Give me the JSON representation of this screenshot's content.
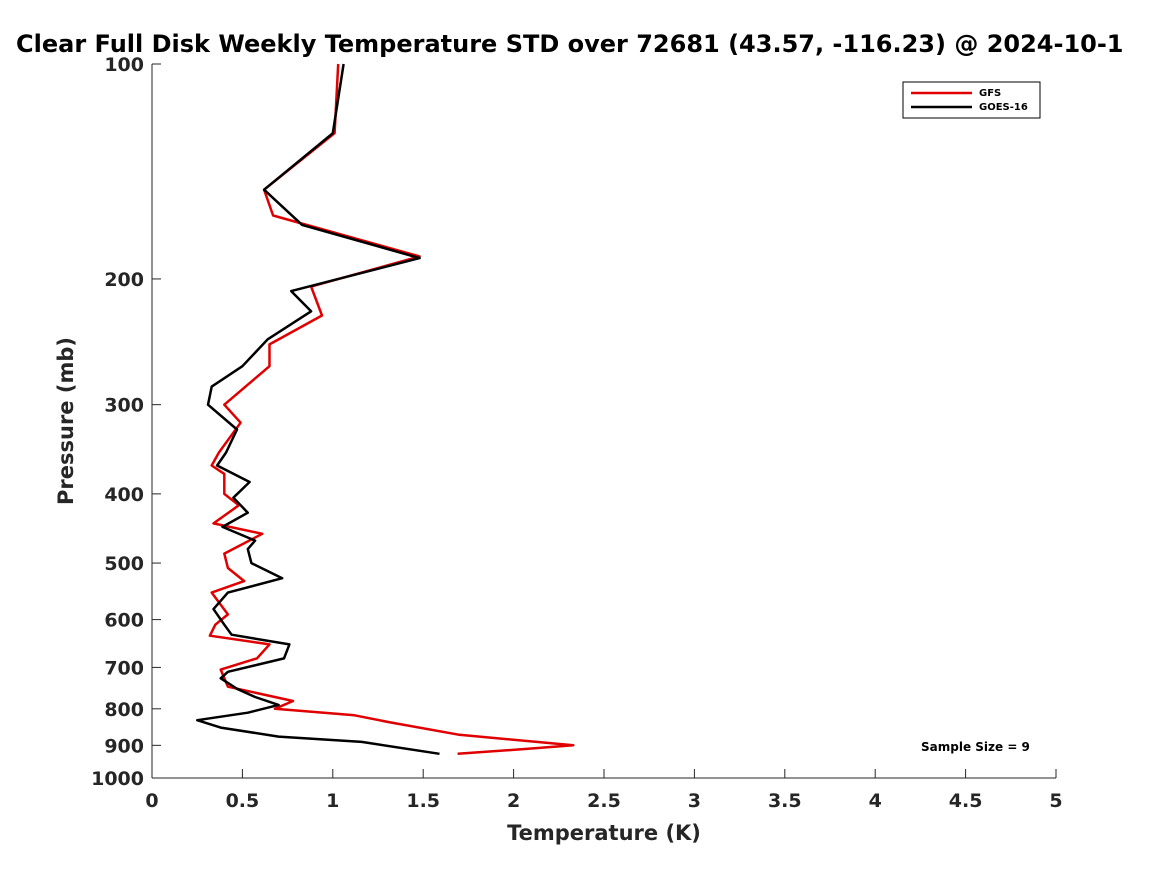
{
  "chart_data": {
    "type": "line",
    "title": "Clear Full Disk Weekly Temperature STD over 72681 (43.57, -116.23) @ 2024-10-1",
    "xlabel": "Temperature (K)",
    "ylabel": "Pressure (mb)",
    "xlim": [
      0,
      5
    ],
    "ylim": [
      100,
      1000
    ],
    "y_scale": "log",
    "y_reversed": true,
    "x_ticks": [
      "0",
      "0.5",
      "1",
      "1.5",
      "2",
      "2.5",
      "3",
      "3.5",
      "4",
      "4.5",
      "5"
    ],
    "y_ticks": [
      "100",
      "200",
      "300",
      "400",
      "500",
      "600",
      "700",
      "800",
      "900",
      "1000"
    ],
    "legend_position": "top-right",
    "annotation": "Sample Size = 9",
    "series": [
      {
        "name": "GFS",
        "color": "#e00000",
        "points": [
          [
            1.03,
            100
          ],
          [
            1.01,
            125
          ],
          [
            0.62,
            150
          ],
          [
            0.67,
            163
          ],
          [
            1.48,
            186
          ],
          [
            0.88,
            205
          ],
          [
            0.94,
            225
          ],
          [
            0.65,
            247
          ],
          [
            0.65,
            265
          ],
          [
            0.4,
            300
          ],
          [
            0.49,
            318
          ],
          [
            0.37,
            350
          ],
          [
            0.33,
            365
          ],
          [
            0.4,
            375
          ],
          [
            0.4,
            400
          ],
          [
            0.48,
            415
          ],
          [
            0.34,
            440
          ],
          [
            0.61,
            455
          ],
          [
            0.4,
            485
          ],
          [
            0.42,
            508
          ],
          [
            0.51,
            530
          ],
          [
            0.33,
            550
          ],
          [
            0.42,
            590
          ],
          [
            0.35,
            610
          ],
          [
            0.32,
            632
          ],
          [
            0.65,
            650
          ],
          [
            0.58,
            680
          ],
          [
            0.38,
            705
          ],
          [
            0.42,
            745
          ],
          [
            0.78,
            780
          ],
          [
            0.68,
            800
          ],
          [
            1.12,
            817
          ],
          [
            1.31,
            835
          ],
          [
            1.7,
            870
          ],
          [
            2.33,
            900
          ],
          [
            2.08,
            910
          ],
          [
            1.69,
            925
          ]
        ]
      },
      {
        "name": "GOES-16",
        "color": "#000000",
        "points": [
          [
            1.06,
            100
          ],
          [
            1.0,
            125
          ],
          [
            0.62,
            150
          ],
          [
            0.83,
            168
          ],
          [
            1.48,
            187
          ],
          [
            0.77,
            208
          ],
          [
            0.88,
            222
          ],
          [
            0.64,
            243
          ],
          [
            0.5,
            265
          ],
          [
            0.33,
            283
          ],
          [
            0.31,
            300
          ],
          [
            0.47,
            325
          ],
          [
            0.41,
            350
          ],
          [
            0.36,
            365
          ],
          [
            0.54,
            385
          ],
          [
            0.45,
            405
          ],
          [
            0.53,
            425
          ],
          [
            0.39,
            445
          ],
          [
            0.57,
            465
          ],
          [
            0.53,
            478
          ],
          [
            0.55,
            500
          ],
          [
            0.72,
            525
          ],
          [
            0.42,
            550
          ],
          [
            0.34,
            580
          ],
          [
            0.4,
            610
          ],
          [
            0.44,
            630
          ],
          [
            0.76,
            650
          ],
          [
            0.73,
            680
          ],
          [
            0.42,
            710
          ],
          [
            0.38,
            725
          ],
          [
            0.47,
            750
          ],
          [
            0.57,
            770
          ],
          [
            0.7,
            790
          ],
          [
            0.53,
            810
          ],
          [
            0.25,
            830
          ],
          [
            0.38,
            850
          ],
          [
            0.7,
            875
          ],
          [
            1.16,
            890
          ],
          [
            1.59,
            925
          ]
        ]
      }
    ]
  }
}
